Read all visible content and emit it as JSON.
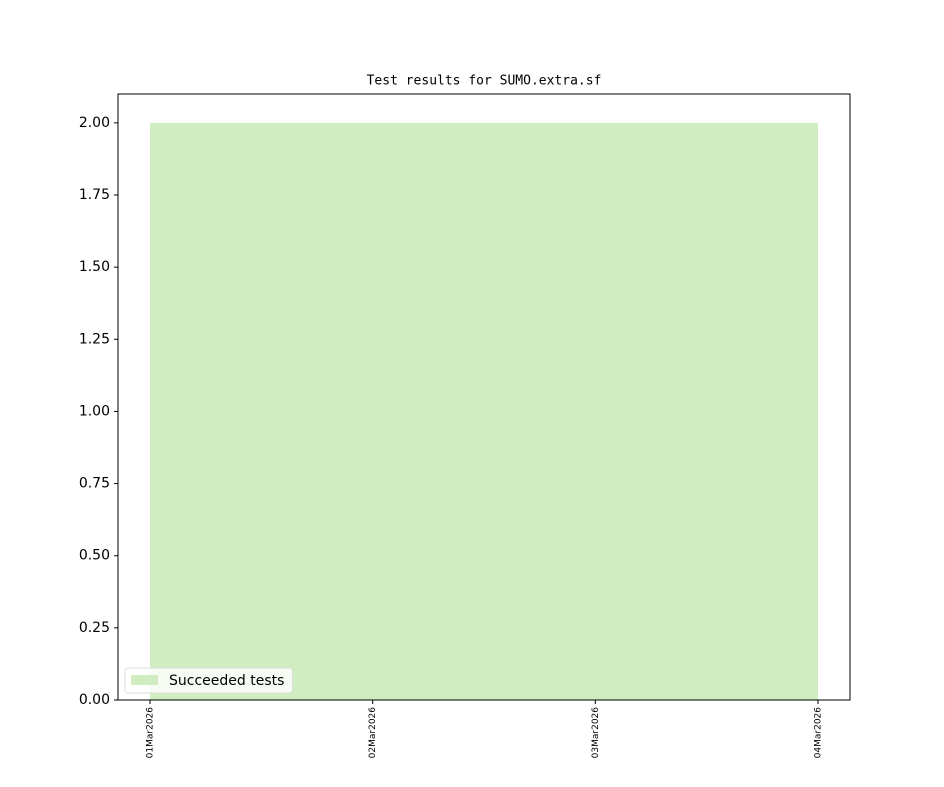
{
  "chart_data": {
    "type": "area",
    "title": "Test results for SUMO.extra.sf",
    "x": [
      "01Mar2026",
      "02Mar2026",
      "03Mar2026",
      "04Mar2026"
    ],
    "series": [
      {
        "name": "Succeeded tests",
        "color": "#cfedc0",
        "values": [
          2,
          2,
          2,
          2
        ]
      }
    ],
    "ylim": [
      0,
      2.1
    ],
    "yticks": [
      {
        "value": 0,
        "label": "0.00"
      },
      {
        "value": 0.25,
        "label": "0.25"
      },
      {
        "value": 0.5,
        "label": "0.50"
      },
      {
        "value": 0.75,
        "label": "0.75"
      },
      {
        "value": 1,
        "label": "1.00"
      },
      {
        "value": 1.25,
        "label": "1.25"
      },
      {
        "value": 1.5,
        "label": "1.50"
      },
      {
        "value": 1.75,
        "label": "1.75"
      },
      {
        "value": 2,
        "label": "2.00"
      }
    ],
    "legend": "lower left",
    "grid": false
  }
}
